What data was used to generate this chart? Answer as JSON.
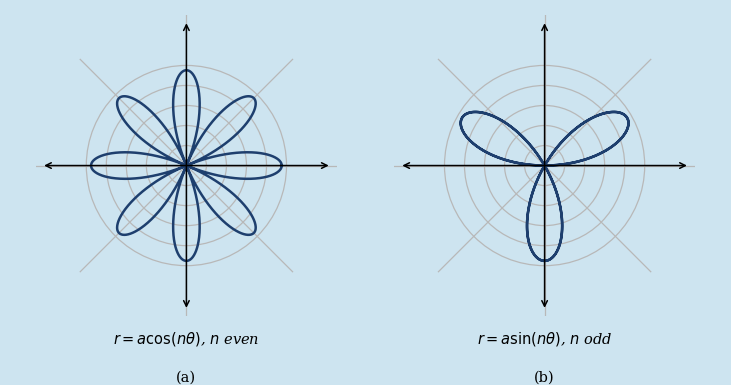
{
  "background_color": "#cde4f0",
  "panel_color": "#ffffff",
  "curve_color": "#1e3f6e",
  "grid_color": "#b8b8b8",
  "axis_color": "#000000",
  "curve_linewidth": 1.8,
  "grid_linewidth": 0.9,
  "axis_linewidth": 1.1,
  "panel_a": {
    "n": 4,
    "a": 1.0,
    "type": "cos",
    "label_formula": "$r = a\\cos(n\\theta)$, $n$ even",
    "label_sub": "(a)"
  },
  "panel_b": {
    "n": 3,
    "a": 1.0,
    "type": "sin",
    "label_formula": "$r = a\\sin(n\\theta)$, $n$ odd",
    "label_sub": "(b)"
  },
  "n_grid_circles": 5,
  "n_grid_angles": 4,
  "figsize": [
    7.31,
    3.85
  ],
  "dpi": 100
}
